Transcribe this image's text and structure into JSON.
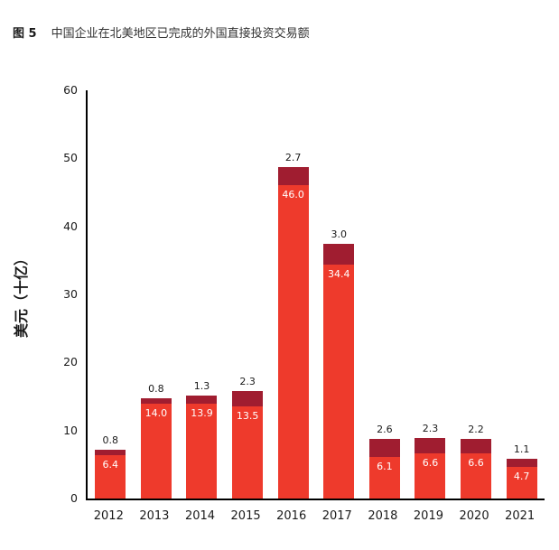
{
  "header": {
    "figure_label": "图 5",
    "title": "中国企业在北美地区已完成的外国直接投资交易额"
  },
  "chart_data": {
    "type": "bar",
    "stacked": true,
    "title": "中国企业在北美地区已完成的外国直接投资交易额",
    "xlabel": "",
    "ylabel": "美元（十亿）",
    "ylim": [
      0,
      60
    ],
    "yticks": [
      0,
      10,
      20,
      30,
      40,
      50,
      60
    ],
    "grid": false,
    "legend": "none",
    "categories": [
      "2012",
      "2013",
      "2014",
      "2015",
      "2016",
      "2017",
      "2018",
      "2019",
      "2020",
      "2021"
    ],
    "series": [
      {
        "name": "bottom-segment",
        "color": "#ee3a2c",
        "values": [
          6.4,
          14.0,
          13.9,
          13.5,
          46.0,
          34.4,
          6.1,
          6.6,
          6.6,
          4.7
        ]
      },
      {
        "name": "top-segment",
        "color": "#a01d30",
        "values": [
          0.8,
          0.8,
          1.3,
          2.3,
          2.7,
          3.0,
          2.6,
          2.3,
          2.2,
          1.1
        ]
      }
    ]
  },
  "colors": {
    "bar_red": "#ee3a2c",
    "bar_dark": "#a01d30",
    "axis": "#000000",
    "text": "#1a1a1a"
  }
}
